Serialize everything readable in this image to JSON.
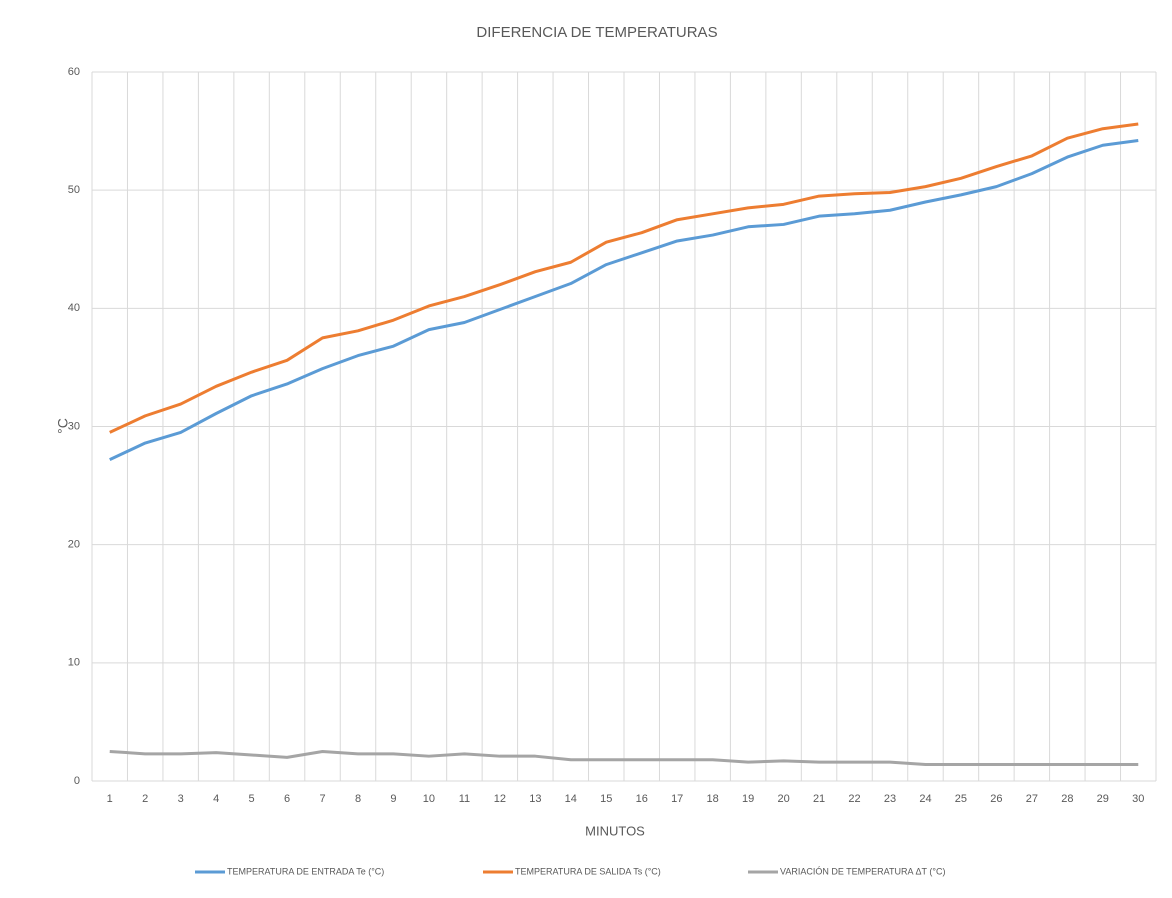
{
  "chart_data": {
    "type": "line",
    "title": "DIFERENCIA DE TEMPERATURAS",
    "x_label": "MINUTOS",
    "y_label": "°C",
    "categories": [
      "1",
      "2",
      "3",
      "4",
      "5",
      "6",
      "7",
      "8",
      "9",
      "10",
      "11",
      "12",
      "13",
      "14",
      "15",
      "16",
      "17",
      "18",
      "19",
      "20",
      "21",
      "22",
      "23",
      "24",
      "25",
      "26",
      "27",
      "28",
      "29",
      "30"
    ],
    "series": [
      {
        "name": "TEMPERATURA DE ENTRADA Te (°C)",
        "color": "#5b9bd5",
        "values": [
          27.2,
          28.6,
          29.5,
          31.1,
          32.6,
          33.6,
          34.9,
          36.0,
          36.8,
          38.2,
          38.8,
          39.9,
          41.0,
          42.1,
          43.7,
          44.7,
          45.7,
          46.2,
          46.9,
          47.1,
          47.8,
          48.0,
          48.3,
          49.0,
          49.6,
          50.3,
          51.4,
          52.8,
          53.8,
          54.2
        ]
      },
      {
        "name": "TEMPERATURA DE SALIDA Ts (°C)",
        "color": "#ed7d31",
        "values": [
          29.5,
          30.9,
          31.9,
          33.4,
          34.6,
          35.6,
          37.5,
          38.1,
          39.0,
          40.2,
          41.0,
          42.0,
          43.1,
          43.9,
          45.6,
          46.4,
          47.5,
          48.0,
          48.5,
          48.8,
          49.5,
          49.7,
          49.8,
          50.3,
          51.0,
          52.0,
          52.9,
          54.4,
          55.2,
          55.6
        ]
      },
      {
        "name": "VARIACIÓN DE TEMPERATURA ΔT (°C)",
        "color": "#a5a5a5",
        "values": [
          2.5,
          2.3,
          2.3,
          2.4,
          2.2,
          2.0,
          2.5,
          2.3,
          2.3,
          2.1,
          2.3,
          2.1,
          2.1,
          1.8,
          1.8,
          1.8,
          1.8,
          1.8,
          1.6,
          1.7,
          1.6,
          1.6,
          1.6,
          1.4,
          1.4,
          1.4,
          1.4,
          1.4,
          1.4,
          1.4
        ]
      }
    ],
    "ylim": [
      0,
      60
    ],
    "yticks": [
      0,
      10,
      20,
      30,
      40,
      50,
      60
    ],
    "grid": true,
    "legend": "bottom"
  }
}
